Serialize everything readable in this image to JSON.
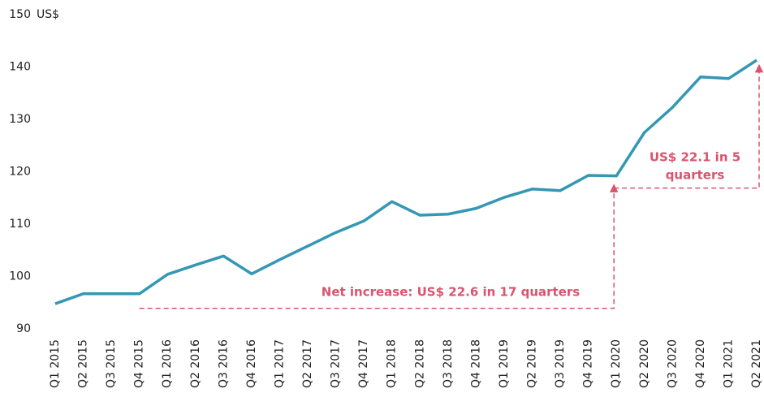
{
  "chart_data": {
    "type": "line",
    "y_unit": "US$",
    "categories": [
      "Q1 2015",
      "Q2 2015",
      "Q3 2015",
      "Q4 2015",
      "Q1 2016",
      "Q2 2016",
      "Q3 2016",
      "Q4 2016",
      "Q1 2017",
      "Q2 2017",
      "Q3 2017",
      "Q4 2017",
      "Q1 2018",
      "Q2 2018",
      "Q3 2018",
      "Q4 2018",
      "Q1 2019",
      "Q2 2019",
      "Q3 2019",
      "Q4 2019",
      "Q1 2020",
      "Q2 2020",
      "Q3 2020",
      "Q4 2020",
      "Q1 2021",
      "Q2 2021"
    ],
    "values": [
      94.8,
      96.7,
      96.7,
      96.7,
      100.4,
      102.2,
      103.9,
      100.5,
      103.2,
      105.8,
      108.4,
      110.6,
      114.3,
      111.7,
      111.9,
      113.0,
      115.1,
      116.7,
      116.4,
      119.3,
      119.2,
      127.5,
      132.3,
      138.1,
      137.8,
      141.3
    ],
    "color": "#3497b3",
    "ylim": [
      90,
      150
    ],
    "yticks": [
      90,
      100,
      110,
      120,
      130,
      140,
      150
    ],
    "annotations": [
      {
        "text": [
          "Net increase: US$ 22.6 in 17 quarters"
        ],
        "color": "#d9546e"
      },
      {
        "text": [
          "US$ 22.1 in 5",
          "quarters"
        ],
        "color": "#d9546e"
      }
    ]
  }
}
